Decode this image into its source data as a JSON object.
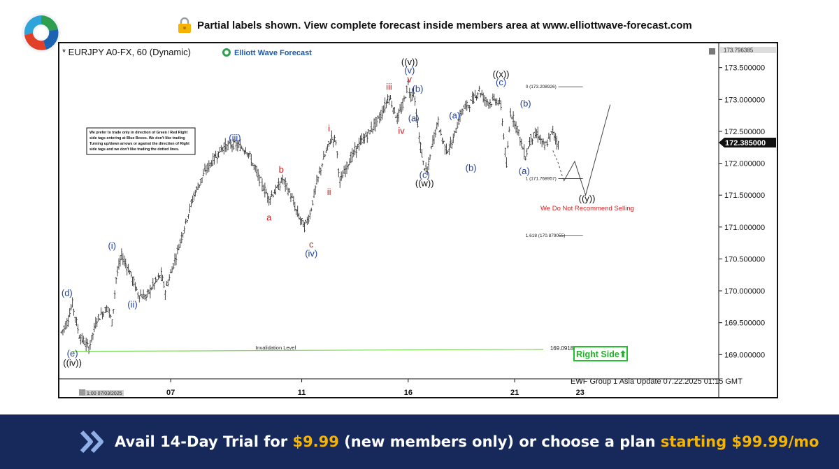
{
  "header": {
    "notice": "Partial labels shown. View complete forecast inside members area at www.elliottwave-forecast.com",
    "lock_icon": "lock-icon",
    "logo_icon": "ewf-circular-logo"
  },
  "chart_data": {
    "type": "candlestick",
    "instrument_label": "* EURJPY A0-FX, 60 (Dynamic)",
    "brand": "Elliott Wave Forecast",
    "ylim": [
      168.62,
      173.88
    ],
    "x_range_hours": [
      0,
      480
    ],
    "price_ticks": [
      "173.500000",
      "173.000000",
      "172.500000",
      "172.000000",
      "171.500000",
      "171.000000",
      "170.500000",
      "170.000000",
      "169.500000",
      "169.000000"
    ],
    "price_tick_values": [
      173.5,
      173.0,
      172.5,
      172.0,
      171.5,
      171.0,
      170.5,
      170.0,
      169.5,
      169.0
    ],
    "top_price_label": "173.796385",
    "current_price": 172.385,
    "current_price_label": "172.385000",
    "date_ticks": [
      {
        "label": "07",
        "hour": 80
      },
      {
        "label": "11",
        "hour": 176
      },
      {
        "label": "16",
        "hour": 254
      },
      {
        "label": "21",
        "hour": 332
      },
      {
        "label": "23",
        "hour": 380
      }
    ],
    "start_time_label": "1:00 07/03/2025",
    "path_hours": [
      0,
      4,
      8,
      13,
      20,
      26,
      34,
      37,
      40,
      44,
      50,
      56,
      62,
      66,
      73,
      76,
      84,
      90,
      97,
      106,
      118,
      127,
      136,
      144,
      152,
      158,
      162,
      168,
      172,
      178,
      182,
      186,
      191,
      196,
      198,
      201,
      204,
      210,
      218,
      226,
      234,
      240,
      246,
      250,
      254,
      256,
      258,
      260,
      262,
      265,
      268,
      270,
      272,
      276,
      278,
      282,
      286,
      290,
      294,
      300,
      306,
      310,
      314,
      318,
      322,
      326,
      329,
      334,
      337,
      340,
      344,
      349,
      354,
      360,
      364
    ],
    "path_prices": [
      169.35,
      169.5,
      169.8,
      169.3,
      169.1,
      169.55,
      169.75,
      169.5,
      170.2,
      170.55,
      170.3,
      169.95,
      169.9,
      170.05,
      170.25,
      170.0,
      170.55,
      171.0,
      171.5,
      171.9,
      172.25,
      172.3,
      172.2,
      171.8,
      171.45,
      171.6,
      171.75,
      171.5,
      171.25,
      171.0,
      171.2,
      171.6,
      172.0,
      172.3,
      172.4,
      172.35,
      171.7,
      172.0,
      172.3,
      172.5,
      172.75,
      173.05,
      172.7,
      172.9,
      173.25,
      173.05,
      173.15,
      172.75,
      172.4,
      172.0,
      171.85,
      172.1,
      172.35,
      172.65,
      172.45,
      172.2,
      172.3,
      172.6,
      172.85,
      172.95,
      173.15,
      173.0,
      172.95,
      173.0,
      172.9,
      171.95,
      172.8,
      172.55,
      172.3,
      172.1,
      172.4,
      172.45,
      172.25,
      172.5,
      172.3
    ],
    "projection_dotted": [
      {
        "hour": 360,
        "price": 172.2
      },
      {
        "hour": 364,
        "price": 172.0
      },
      {
        "hour": 368,
        "price": 171.72
      }
    ],
    "projection_solid": [
      {
        "hour": 368,
        "price": 171.72
      },
      {
        "hour": 376,
        "price": 172.03
      },
      {
        "hour": 384,
        "price": 171.5
      },
      {
        "hour": 402,
        "price": 172.92
      }
    ],
    "wave_labels": [
      {
        "text": "(d)",
        "hour": 4,
        "price": 169.92,
        "color": "#1f3fa6"
      },
      {
        "text": "(e)",
        "hour": 8,
        "price": 168.97,
        "color": "#1f3fa6"
      },
      {
        "text": "((iv))",
        "hour": 8,
        "price": 168.82,
        "color": "#111111"
      },
      {
        "text": "(i)",
        "hour": 37,
        "price": 170.66,
        "color": "#1f3fa6"
      },
      {
        "text": "(ii)",
        "hour": 52,
        "price": 169.74,
        "color": "#1f3fa6"
      },
      {
        "text": "(iii)",
        "hour": 127,
        "price": 172.35,
        "color": "#1f3fa6"
      },
      {
        "text": "a",
        "hour": 152,
        "price": 171.1,
        "color": "#cc2020"
      },
      {
        "text": "b",
        "hour": 161,
        "price": 171.85,
        "color": "#cc2020"
      },
      {
        "text": "c",
        "hour": 183,
        "price": 170.68,
        "color": "#cc2020"
      },
      {
        "text": "(iv)",
        "hour": 183,
        "price": 170.54,
        "color": "#1f3fa6"
      },
      {
        "text": "i",
        "hour": 196,
        "price": 172.5,
        "color": "#cc2020"
      },
      {
        "text": "ii",
        "hour": 196,
        "price": 171.5,
        "color": "#cc2020"
      },
      {
        "text": "iii",
        "hour": 240,
        "price": 173.15,
        "color": "#cc2020"
      },
      {
        "text": "iv",
        "hour": 249,
        "price": 172.46,
        "color": "#cc2020"
      },
      {
        "text": "v",
        "hour": 255,
        "price": 173.27,
        "color": "#cc2020"
      },
      {
        "text": "(v)",
        "hour": 255,
        "price": 173.41,
        "color": "#1f3fa6"
      },
      {
        "text": "((v))",
        "hour": 255,
        "price": 173.54,
        "color": "#111111"
      },
      {
        "text": "(b)",
        "hour": 261,
        "price": 173.12,
        "color": "#1f3fa6"
      },
      {
        "text": "(a)",
        "hour": 258,
        "price": 172.66,
        "color": "#1f3fa6"
      },
      {
        "text": "(c)",
        "hour": 266,
        "price": 171.77,
        "color": "#1f3fa6"
      },
      {
        "text": "((w))",
        "hour": 266,
        "price": 171.64,
        "color": "#111111"
      },
      {
        "text": "(a)",
        "hour": 288,
        "price": 172.7,
        "color": "#1f3fa6"
      },
      {
        "text": "(b)",
        "hour": 300,
        "price": 171.88,
        "color": "#1f3fa6"
      },
      {
        "text": "((x))",
        "hour": 322,
        "price": 173.35,
        "color": "#111111"
      },
      {
        "text": "(c)",
        "hour": 322,
        "price": 173.22,
        "color": "#1f3fa6"
      },
      {
        "text": "(b)",
        "hour": 340,
        "price": 172.89,
        "color": "#1f3fa6"
      },
      {
        "text": "(a)",
        "hour": 339,
        "price": 171.83,
        "color": "#1f3fa6"
      },
      {
        "text": "((y))",
        "hour": 385,
        "price": 171.4,
        "color": "#111111"
      }
    ],
    "fib_levels": [
      {
        "label": "0 (173.208926)",
        "price": 173.21
      },
      {
        "label": "1 (171.768957)",
        "price": 171.77
      },
      {
        "label": "1.618 (170.879055)",
        "price": 170.88
      }
    ],
    "invalidation": {
      "label": "Invalidation Level",
      "price": 169.05,
      "price_label": "169.091847",
      "color": "#7ed957"
    },
    "annotations": {
      "note_lines": [
        "We prefer to trade only in direction of Green / Red Right",
        "side tags entering at Blue Boxes. We don't like trading",
        "Turning up/down arrows or against the direction of Right",
        "side tags and we don't like trading the dotted lines."
      ],
      "no_sell_text": "We Do Not Recommend Selling",
      "right_side_text": "Right Side⬆",
      "footer_text": "EWF Group 1 Asia Update 07.22.2025 01:15 GMT"
    }
  },
  "promo": {
    "text_before": "Avail 14-Day Trial for ",
    "price_trial": "$9.99",
    "text_mid": " (new members only) or choose a plan ",
    "price_plan": "starting $99.99/mo",
    "chevron_icon": "double-chevron-right-icon"
  }
}
